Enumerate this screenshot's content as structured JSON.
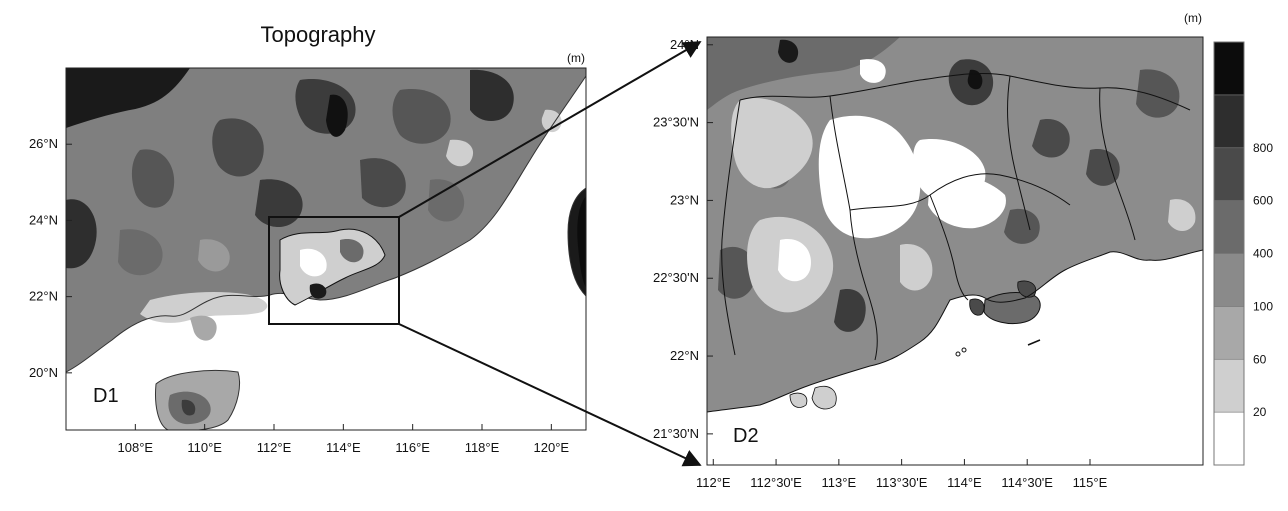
{
  "figure": {
    "title": "Topography",
    "unit_left": "(m)",
    "unit_right": "(m)"
  },
  "panels": {
    "d1": {
      "label": "D1",
      "x_ticks": [
        "108°E",
        "110°E",
        "112°E",
        "114°E",
        "116°E",
        "118°E",
        "120°E"
      ],
      "y_ticks": [
        "26°N",
        "24°N",
        "22°N",
        "20°N"
      ],
      "lon_range": [
        106,
        121
      ],
      "lat_range": [
        18.5,
        28
      ]
    },
    "d2": {
      "label": "D2",
      "x_ticks": [
        "112°E",
        "112°30'E",
        "113°E",
        "113°30'E",
        "114°E",
        "114°30'E",
        "115°E"
      ],
      "y_ticks": [
        "24°N",
        "23°30'N",
        "23°N",
        "22°30'N",
        "22°N",
        "21°30'N"
      ],
      "lon_range": [
        111.95,
        115.9
      ],
      "lat_range": [
        21.3,
        24.05
      ]
    }
  },
  "colorbar": {
    "levels": [
      "20",
      "60",
      "100",
      "400",
      "600",
      "800"
    ],
    "colors": [
      "#ffffff",
      "#cfcfcf",
      "#a8a8a8",
      "#8a8a8a",
      "#6b6b6b",
      "#4a4a4a",
      "#2e2e2e",
      "#0c0c0c"
    ]
  }
}
